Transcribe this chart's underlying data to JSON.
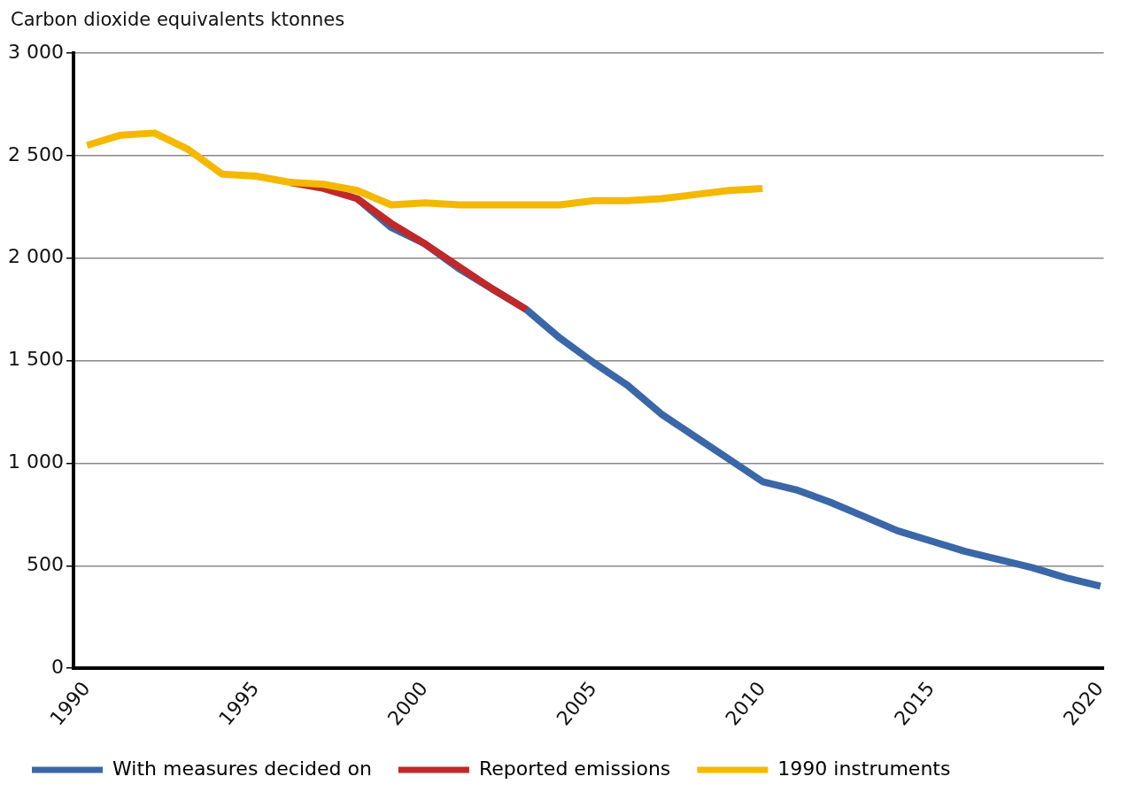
{
  "chart_data": {
    "type": "line",
    "ylabel": "Carbon dioxide equivalents ktonnes",
    "x": [
      1990,
      1991,
      1992,
      1993,
      1994,
      1995,
      1996,
      1997,
      1998,
      1999,
      2000,
      2001,
      2002,
      2003,
      2004,
      2005,
      2006,
      2007,
      2008,
      2009,
      2010,
      2011,
      2012,
      2013,
      2014,
      2015,
      2016,
      2017,
      2018,
      2019,
      2020
    ],
    "series": [
      {
        "name": "With measures decided on",
        "color": "#3a67a8",
        "values": [
          null,
          null,
          null,
          null,
          null,
          null,
          null,
          null,
          2290,
          2150,
          2070,
          1950,
          1850,
          1750,
          1610,
          1490,
          1380,
          1240,
          1130,
          1020,
          910,
          870,
          810,
          740,
          670,
          620,
          570,
          530,
          490,
          440,
          400
        ]
      },
      {
        "name": "Reported emissions",
        "color": "#c0282a",
        "values": [
          null,
          null,
          null,
          null,
          null,
          null,
          2370,
          2340,
          2290,
          2170,
          2070,
          1960,
          1850,
          1750,
          null,
          null,
          null,
          null,
          null,
          null,
          null,
          null,
          null,
          null,
          null,
          null,
          null,
          null,
          null,
          null,
          null
        ]
      },
      {
        "name": "1990 instruments",
        "color": "#f5b800",
        "values": [
          2550,
          2600,
          2610,
          2530,
          2410,
          2400,
          2370,
          2360,
          2330,
          2260,
          2270,
          2260,
          2260,
          2260,
          2260,
          2280,
          2280,
          2290,
          2310,
          2330,
          2340,
          null,
          null,
          null,
          null,
          null,
          null,
          null,
          null,
          null,
          null
        ]
      }
    ],
    "xlim": [
      1989.6,
      2020.1
    ],
    "xticks": [
      1990,
      1995,
      2000,
      2005,
      2010,
      2015,
      2020
    ],
    "ylim": [
      0,
      3000
    ],
    "yticks": [
      {
        "value": 0,
        "label": "0"
      },
      {
        "value": 500,
        "label": "500"
      },
      {
        "value": 1000,
        "label": "1 000"
      },
      {
        "value": 1500,
        "label": "1 500"
      },
      {
        "value": 2000,
        "label": "2 000"
      },
      {
        "value": 2500,
        "label": "2 500"
      },
      {
        "value": 3000,
        "label": "3 000"
      }
    ],
    "grid": "y",
    "legend": "bottom",
    "marker": "none",
    "line_style": "solid"
  }
}
